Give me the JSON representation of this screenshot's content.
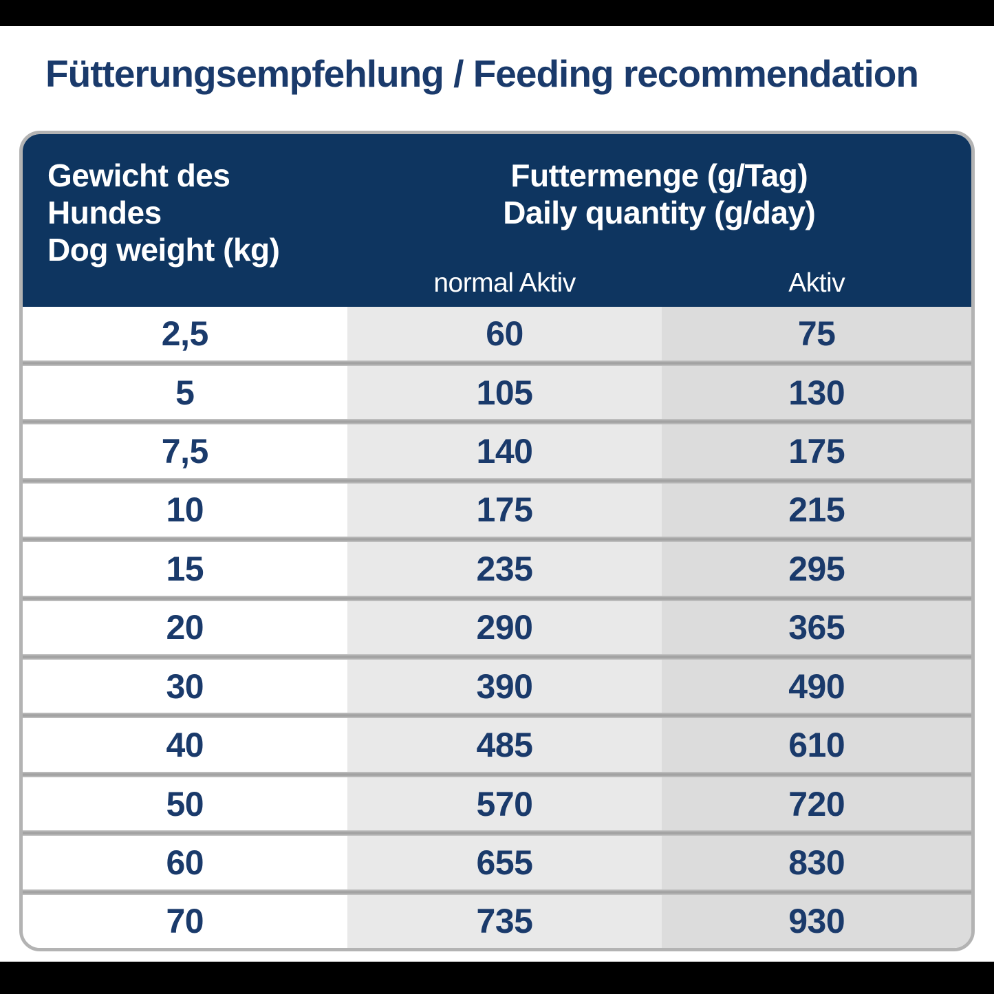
{
  "page": {
    "title": "Fütterungsempfehlung / Feeding recommendation"
  },
  "table": {
    "header": {
      "weight_de": "Gewicht des Hundes",
      "weight_en": "Dog weight (kg)",
      "quantity_de": "Futtermenge (g/Tag)",
      "quantity_en": "Daily quantity (g/day)",
      "normal_label": "normal Aktiv",
      "active_label": "Aktiv"
    },
    "rows": [
      {
        "weight": "2,5",
        "normal": "60",
        "active": "75"
      },
      {
        "weight": "5",
        "normal": "105",
        "active": "130"
      },
      {
        "weight": "7,5",
        "normal": "140",
        "active": "175"
      },
      {
        "weight": "10",
        "normal": "175",
        "active": "215"
      },
      {
        "weight": "15",
        "normal": "235",
        "active": "295"
      },
      {
        "weight": "20",
        "normal": "290",
        "active": "365"
      },
      {
        "weight": "30",
        "normal": "390",
        "active": "490"
      },
      {
        "weight": "40",
        "normal": "485",
        "active": "610"
      },
      {
        "weight": "50",
        "normal": "570",
        "active": "720"
      },
      {
        "weight": "60",
        "normal": "655",
        "active": "830"
      },
      {
        "weight": "70",
        "normal": "735",
        "active": "930"
      }
    ]
  },
  "chart_data": {
    "type": "table",
    "title": "Fütterungsempfehlung / Feeding recommendation",
    "columns": [
      "Gewicht des Hundes / Dog weight (kg)",
      "Futtermenge (g/Tag) / Daily quantity (g/day) — normal Aktiv",
      "Futtermenge (g/Tag) / Daily quantity (g/day) — Aktiv"
    ],
    "rows": [
      [
        2.5,
        60,
        75
      ],
      [
        5,
        105,
        130
      ],
      [
        7.5,
        140,
        175
      ],
      [
        10,
        175,
        215
      ],
      [
        15,
        235,
        295
      ],
      [
        20,
        290,
        365
      ],
      [
        30,
        390,
        490
      ],
      [
        40,
        485,
        610
      ],
      [
        50,
        570,
        720
      ],
      [
        60,
        655,
        830
      ],
      [
        70,
        735,
        930
      ]
    ]
  },
  "colors": {
    "header_bg": "#0e3560",
    "text_navy": "#1a3a6b",
    "normal_column_bg": "#e9e9e9",
    "active_column_bg": "#dcdcdc",
    "divider": "#a8a8a8",
    "table_border": "#b3b3b3",
    "letterbox": "#000000",
    "page_bg": "#ffffff"
  }
}
